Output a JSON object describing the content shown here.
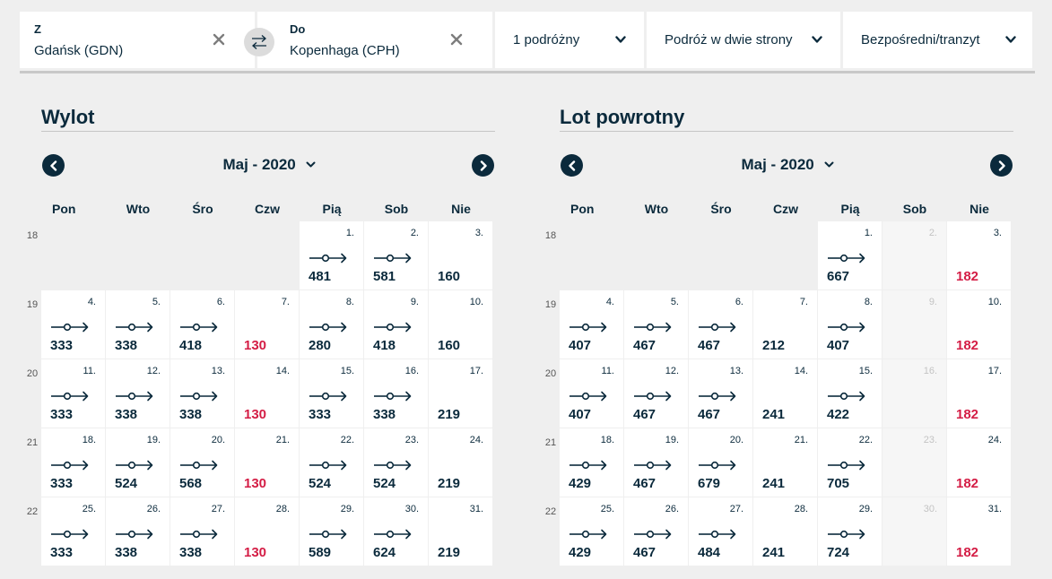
{
  "search": {
    "from": {
      "label": "Z",
      "value": "Gdańsk (GDN)"
    },
    "to": {
      "label": "Do",
      "value": "Kopenhaga (CPH)"
    },
    "passengers": "1 podróżny",
    "trip_type": "Podróż w dwie strony",
    "stops": "Bezpośredni/tranzyt"
  },
  "icons": {
    "clear": "close-icon",
    "swap": "swap-arrows-icon",
    "chevron": "chevron-down-icon",
    "nav_prev": "chevron-left-icon",
    "nav_next": "chevron-right-icon",
    "route": "direct-flight-icon"
  },
  "colors": {
    "primary": "#0b2a3c",
    "cheapest_price": "#d41d45",
    "background": "#efefef"
  },
  "weekdays": [
    "Pon",
    "Wto",
    "Śro",
    "Czw",
    "Pią",
    "Sob",
    "Nie"
  ],
  "calendars": [
    {
      "id": "outbound",
      "title": "Wylot",
      "month": "Maj - 2020",
      "weeks": [
        {
          "week": "18",
          "days": [
            null,
            null,
            null,
            null,
            {
              "num": "1.",
              "price": "481",
              "route": true
            },
            {
              "num": "2.",
              "price": "581",
              "route": true
            },
            {
              "num": "3.",
              "price": "160",
              "route": false
            }
          ]
        },
        {
          "week": "19",
          "days": [
            {
              "num": "4.",
              "price": "333",
              "route": true
            },
            {
              "num": "5.",
              "price": "338",
              "route": true
            },
            {
              "num": "6.",
              "price": "418",
              "route": true
            },
            {
              "num": "7.",
              "price": "130",
              "route": false,
              "cheap": true
            },
            {
              "num": "8.",
              "price": "280",
              "route": true
            },
            {
              "num": "9.",
              "price": "418",
              "route": true
            },
            {
              "num": "10.",
              "price": "160",
              "route": false
            }
          ]
        },
        {
          "week": "20",
          "days": [
            {
              "num": "11.",
              "price": "333",
              "route": true
            },
            {
              "num": "12.",
              "price": "338",
              "route": true
            },
            {
              "num": "13.",
              "price": "338",
              "route": true
            },
            {
              "num": "14.",
              "price": "130",
              "route": false,
              "cheap": true
            },
            {
              "num": "15.",
              "price": "333",
              "route": true
            },
            {
              "num": "16.",
              "price": "338",
              "route": true
            },
            {
              "num": "17.",
              "price": "219",
              "route": false
            }
          ]
        },
        {
          "week": "21",
          "days": [
            {
              "num": "18.",
              "price": "333",
              "route": true
            },
            {
              "num": "19.",
              "price": "524",
              "route": true
            },
            {
              "num": "20.",
              "price": "568",
              "route": true
            },
            {
              "num": "21.",
              "price": "130",
              "route": false,
              "cheap": true
            },
            {
              "num": "22.",
              "price": "524",
              "route": true
            },
            {
              "num": "23.",
              "price": "524",
              "route": true
            },
            {
              "num": "24.",
              "price": "219",
              "route": false
            }
          ]
        },
        {
          "week": "22",
          "days": [
            {
              "num": "25.",
              "price": "333",
              "route": true
            },
            {
              "num": "26.",
              "price": "338",
              "route": true
            },
            {
              "num": "27.",
              "price": "338",
              "route": true
            },
            {
              "num": "28.",
              "price": "130",
              "route": false,
              "cheap": true
            },
            {
              "num": "29.",
              "price": "589",
              "route": true
            },
            {
              "num": "30.",
              "price": "624",
              "route": true
            },
            {
              "num": "31.",
              "price": "219",
              "route": false
            }
          ]
        }
      ]
    },
    {
      "id": "return",
      "title": "Lot powrotny",
      "month": "Maj - 2020",
      "weeks": [
        {
          "week": "18",
          "days": [
            null,
            null,
            null,
            null,
            {
              "num": "1.",
              "price": "667",
              "route": true
            },
            {
              "num": "2.",
              "disabled": true
            },
            {
              "num": "3.",
              "price": "182",
              "route": false,
              "cheap": true
            }
          ]
        },
        {
          "week": "19",
          "days": [
            {
              "num": "4.",
              "price": "407",
              "route": true
            },
            {
              "num": "5.",
              "price": "467",
              "route": true
            },
            {
              "num": "6.",
              "price": "467",
              "route": true
            },
            {
              "num": "7.",
              "price": "212",
              "route": false
            },
            {
              "num": "8.",
              "price": "407",
              "route": true
            },
            {
              "num": "9.",
              "disabled": true
            },
            {
              "num": "10.",
              "price": "182",
              "route": false,
              "cheap": true
            }
          ]
        },
        {
          "week": "20",
          "days": [
            {
              "num": "11.",
              "price": "407",
              "route": true
            },
            {
              "num": "12.",
              "price": "467",
              "route": true
            },
            {
              "num": "13.",
              "price": "467",
              "route": true
            },
            {
              "num": "14.",
              "price": "241",
              "route": false
            },
            {
              "num": "15.",
              "price": "422",
              "route": true
            },
            {
              "num": "16.",
              "disabled": true
            },
            {
              "num": "17.",
              "price": "182",
              "route": false,
              "cheap": true
            }
          ]
        },
        {
          "week": "21",
          "days": [
            {
              "num": "18.",
              "price": "429",
              "route": true
            },
            {
              "num": "19.",
              "price": "467",
              "route": true
            },
            {
              "num": "20.",
              "price": "679",
              "route": true
            },
            {
              "num": "21.",
              "price": "241",
              "route": false
            },
            {
              "num": "22.",
              "price": "705",
              "route": true
            },
            {
              "num": "23.",
              "disabled": true
            },
            {
              "num": "24.",
              "price": "182",
              "route": false,
              "cheap": true
            }
          ]
        },
        {
          "week": "22",
          "days": [
            {
              "num": "25.",
              "price": "429",
              "route": true
            },
            {
              "num": "26.",
              "price": "467",
              "route": true
            },
            {
              "num": "27.",
              "price": "484",
              "route": true
            },
            {
              "num": "28.",
              "price": "241",
              "route": false
            },
            {
              "num": "29.",
              "price": "724",
              "route": true
            },
            {
              "num": "30.",
              "disabled": true
            },
            {
              "num": "31.",
              "price": "182",
              "route": false,
              "cheap": true
            }
          ]
        }
      ]
    }
  ]
}
